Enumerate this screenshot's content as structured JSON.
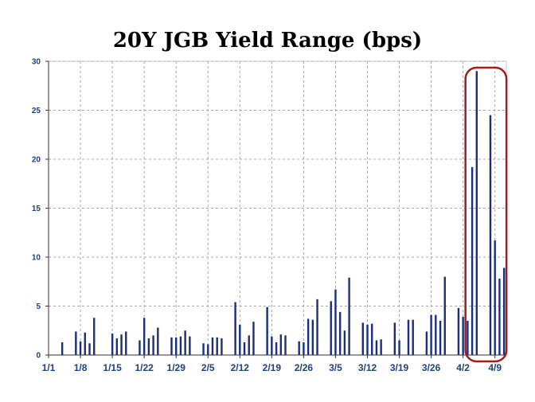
{
  "chart_data": {
    "type": "bar",
    "title": "20Y JGB Yield Range (bps)",
    "xlabel": "",
    "ylabel": "",
    "ylim": [
      0,
      30
    ],
    "yticks": [
      0,
      5,
      10,
      15,
      20,
      25,
      30
    ],
    "x_tick_labels": [
      "1/1",
      "1/8",
      "1/15",
      "1/22",
      "1/29",
      "2/5",
      "2/12",
      "2/19",
      "2/26",
      "3/5",
      "3/12",
      "3/19",
      "3/26",
      "4/2",
      "4/9"
    ],
    "grid": true,
    "bar_color": "#1a2f7a",
    "highlight_color": "#a31c1c",
    "highlight_range": [
      "4/2",
      "4/11"
    ],
    "series": [
      {
        "x": [
          "1/4",
          "1/7",
          "1/8",
          "1/9",
          "1/10",
          "1/11",
          "1/15",
          "1/16",
          "1/17",
          "1/18",
          "1/21",
          "1/22",
          "1/23",
          "1/24",
          "1/25",
          "1/28",
          "1/29",
          "1/30",
          "1/31",
          "2/1",
          "2/4",
          "2/5",
          "2/6",
          "2/7",
          "2/8",
          "2/11",
          "2/12",
          "2/13",
          "2/14",
          "2/15",
          "2/18",
          "2/19",
          "2/20",
          "2/21",
          "2/22",
          "2/25",
          "2/26",
          "2/27",
          "2/28",
          "3/1",
          "3/4",
          "3/5",
          "3/6",
          "3/7",
          "3/8",
          "3/11",
          "3/12",
          "3/13",
          "3/14",
          "3/15",
          "3/18",
          "3/19",
          "3/21",
          "3/22",
          "3/25",
          "3/26",
          "3/27",
          "3/28",
          "3/29",
          "4/1",
          "4/2",
          "4/3",
          "4/4",
          "4/5",
          "4/8",
          "4/9",
          "4/10",
          "4/11"
        ],
        "values": [
          1.3,
          2.4,
          1.4,
          2.3,
          1.2,
          3.8,
          2.2,
          1.7,
          2.1,
          2.4,
          1.5,
          3.8,
          1.7,
          2.0,
          2.8,
          1.8,
          1.8,
          1.9,
          2.5,
          1.9,
          1.2,
          1.1,
          1.8,
          1.8,
          1.7,
          5.4,
          3.1,
          1.3,
          2.0,
          3.4,
          4.9,
          1.9,
          1.3,
          2.1,
          2.0,
          1.4,
          1.3,
          3.7,
          3.6,
          5.7,
          5.5,
          6.7,
          4.4,
          2.5,
          7.9,
          3.3,
          3.1,
          3.2,
          1.5,
          1.6,
          3.3,
          1.5,
          3.6,
          3.6,
          2.4,
          4.1,
          4.1,
          3.5,
          8.0,
          4.8,
          3.9,
          3.5,
          19.2,
          29.0,
          24.5,
          11.7,
          7.8,
          8.9
        ]
      }
    ]
  }
}
